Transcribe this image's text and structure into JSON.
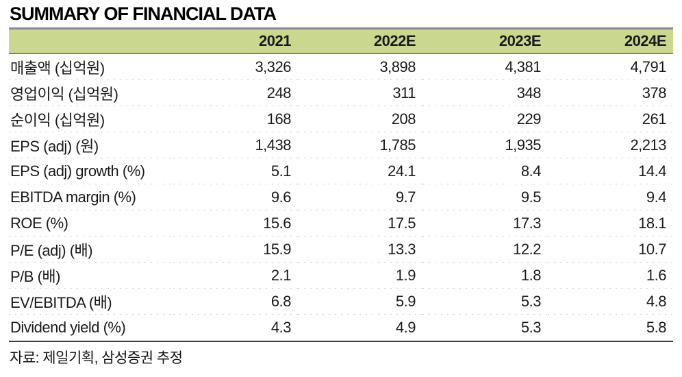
{
  "title": "SUMMARY OF FINANCIAL DATA",
  "source_note": "자료: 제일기획, 삼성증권 추정",
  "colors": {
    "header_bg": "#cad88f",
    "top_border": "#8b8b8b",
    "header_bottom_border": "#7f7f7f",
    "table_bottom_border": "#3f3f3f",
    "row_separator": "#c6c6c6",
    "text": "#1a1a1a"
  },
  "chart_data": {
    "type": "table",
    "title": "SUMMARY OF FINANCIAL DATA",
    "columns": [
      "",
      "2021",
      "2022E",
      "2023E",
      "2024E"
    ],
    "rows": [
      [
        "매출액 (십억원)",
        "3,326",
        "3,898",
        "4,381",
        "4,791"
      ],
      [
        "영업이익 (십억원)",
        "248",
        "311",
        "348",
        "378"
      ],
      [
        "순이익 (십억원)",
        "168",
        "208",
        "229",
        "261"
      ],
      [
        "EPS (adj) (원)",
        "1,438",
        "1,785",
        "1,935",
        "2,213"
      ],
      [
        "EPS (adj) growth (%)",
        "5.1",
        "24.1",
        "8.4",
        "14.4"
      ],
      [
        "EBITDA margin (%)",
        "9.6",
        "9.7",
        "9.5",
        "9.4"
      ],
      [
        "ROE (%)",
        "15.6",
        "17.5",
        "17.3",
        "18.1"
      ],
      [
        "P/E (adj) (배)",
        "15.9",
        "13.3",
        "12.2",
        "10.7"
      ],
      [
        "P/B (배)",
        "2.1",
        "1.9",
        "1.8",
        "1.6"
      ],
      [
        "EV/EBITDA (배)",
        "6.8",
        "5.9",
        "5.3",
        "4.8"
      ],
      [
        "Dividend yield (%)",
        "4.3",
        "4.9",
        "5.3",
        "5.8"
      ]
    ],
    "source": "자료: 제일기획, 삼성증권 추정"
  }
}
